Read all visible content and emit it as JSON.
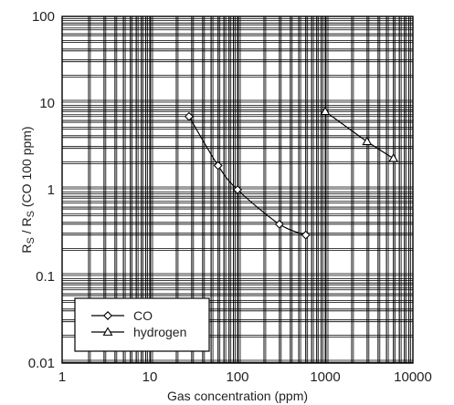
{
  "chart_data": {
    "type": "line",
    "title": "",
    "xlabel": "Gas concentration (ppm)",
    "ylabel": {
      "parts": [
        {
          "text": "R",
          "sub": false
        },
        {
          "text": "S",
          "sub": true
        },
        {
          "text": " / R",
          "sub": false
        },
        {
          "text": "S",
          "sub": true
        },
        {
          "text": " (CO 100 ppm)",
          "sub": false
        }
      ]
    },
    "x_scale": "log",
    "y_scale": "log",
    "xlim": [
      1,
      10000
    ],
    "ylim": [
      0.01,
      100
    ],
    "x_ticks": [
      {
        "value": 1,
        "label": "1"
      },
      {
        "value": 10,
        "label": "10"
      },
      {
        "value": 100,
        "label": "100"
      },
      {
        "value": 1000,
        "label": "1000"
      },
      {
        "value": 10000,
        "label": "10000"
      }
    ],
    "y_ticks": [
      {
        "value": 0.01,
        "label": "0.01"
      },
      {
        "value": 0.1,
        "label": "0.1"
      },
      {
        "value": 1,
        "label": "1"
      },
      {
        "value": 10,
        "label": "10"
      },
      {
        "value": 100,
        "label": "100"
      }
    ],
    "grid": true,
    "legend_position": "bottom-left",
    "series": [
      {
        "name": "CO",
        "marker": "diamond",
        "x": [
          28,
          60,
          100,
          300,
          600
        ],
        "y": [
          7.0,
          1.9,
          1.0,
          0.4,
          0.3
        ]
      },
      {
        "name": "hydrogen",
        "marker": "triangle",
        "x": [
          1000,
          3000,
          6000
        ],
        "y": [
          8.0,
          3.6,
          2.3
        ]
      }
    ]
  }
}
